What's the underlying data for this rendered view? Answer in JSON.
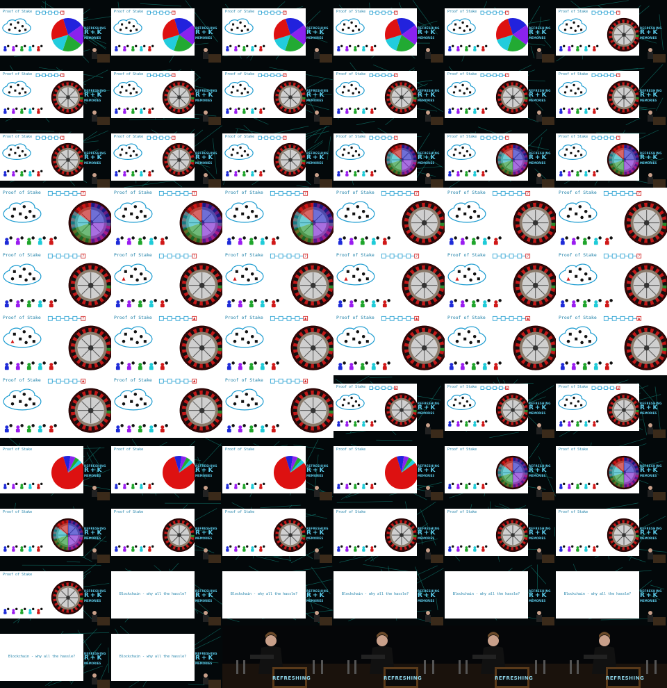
{
  "slide_title": "Proof of Stake",
  "closing_slide_text": "Blockchain - why all the hassle?",
  "branding": {
    "line1": "REFRESHING",
    "line2": "R+K",
    "line3": "MEMORIES"
  },
  "stage_banner": "REFRESHING",
  "colors": {
    "title": "#1b7fa7",
    "cloud": "#1a9bd0",
    "chain": "#1a9bd0",
    "block_mark": "#d01818",
    "people": [
      "#1e2bd8",
      "#9a1cf0",
      "#1fa52b",
      "#1fcbd8",
      "#d01818"
    ],
    "pie": [
      "#2222dd",
      "#8a22ee",
      "#22aa33",
      "#22ccdd",
      "#dd1111"
    ],
    "roulette_red": "#c41818",
    "roulette_black": "#111111",
    "roulette_green": "#2a8a2a"
  },
  "frames": [
    {
      "layout": "small",
      "main": "pie-even",
      "mark": "?"
    },
    {
      "layout": "small",
      "main": "pie-even",
      "mark": "?"
    },
    {
      "layout": "small",
      "main": "pie-even",
      "mark": "?"
    },
    {
      "layout": "small",
      "main": "pie-even",
      "mark": "?"
    },
    {
      "layout": "small",
      "main": "pie-even",
      "mark": "?"
    },
    {
      "layout": "small",
      "main": "roulette",
      "mark": "?"
    },
    {
      "layout": "small",
      "main": "roulette",
      "mark": "?"
    },
    {
      "layout": "small",
      "main": "roulette",
      "mark": "?"
    },
    {
      "layout": "small",
      "main": "roulette",
      "mark": "?"
    },
    {
      "layout": "small",
      "main": "roulette",
      "mark": "?"
    },
    {
      "layout": "small",
      "main": "roulette",
      "mark": "?"
    },
    {
      "layout": "small",
      "main": "roulette",
      "mark": "?"
    },
    {
      "layout": "small",
      "main": "roulette",
      "mark": "?"
    },
    {
      "layout": "small",
      "main": "roulette",
      "mark": "?"
    },
    {
      "layout": "small",
      "main": "roulette",
      "mark": "?"
    },
    {
      "layout": "small",
      "main": "roulette-colored",
      "mark": "?"
    },
    {
      "layout": "small",
      "main": "roulette-colored",
      "mark": "?"
    },
    {
      "layout": "small",
      "main": "roulette-colored",
      "mark": "?"
    },
    {
      "layout": "full",
      "main": "roulette-colored",
      "mark": "?"
    },
    {
      "layout": "full",
      "main": "roulette-colored",
      "mark": "?"
    },
    {
      "layout": "full",
      "main": "roulette-colored",
      "mark": "?"
    },
    {
      "layout": "full",
      "main": "roulette",
      "mark": "?"
    },
    {
      "layout": "full",
      "main": "roulette",
      "mark": "?"
    },
    {
      "layout": "full",
      "main": "roulette",
      "mark": "?"
    },
    {
      "layout": "full",
      "main": "roulette",
      "mark": "?"
    },
    {
      "layout": "full",
      "main": "roulette",
      "mark": "?",
      "red": true
    },
    {
      "layout": "full",
      "main": "roulette",
      "mark": "?",
      "red": true
    },
    {
      "layout": "full",
      "main": "roulette",
      "mark": "?",
      "red": true
    },
    {
      "layout": "full",
      "main": "roulette",
      "mark": "?",
      "red": true
    },
    {
      "layout": "full",
      "main": "roulette",
      "mark": "?",
      "red": true
    },
    {
      "layout": "full",
      "main": "roulette",
      "mark": "?",
      "red": true
    },
    {
      "layout": "full",
      "main": "roulette",
      "mark": "tri"
    },
    {
      "layout": "full",
      "main": "roulette",
      "mark": "tri"
    },
    {
      "layout": "full",
      "main": "roulette",
      "mark": "tri"
    },
    {
      "layout": "full",
      "main": "roulette",
      "mark": "tri"
    },
    {
      "layout": "full",
      "main": "roulette",
      "mark": "tri"
    },
    {
      "layout": "full",
      "main": "roulette",
      "mark": "tri"
    },
    {
      "layout": "full",
      "main": "roulette",
      "mark": "tri"
    },
    {
      "layout": "full",
      "main": "roulette",
      "mark": "tri"
    },
    {
      "layout": "small",
      "main": "roulette",
      "mark": "tri"
    },
    {
      "layout": "small",
      "main": "roulette",
      "mark": "tri"
    },
    {
      "layout": "small",
      "main": "roulette",
      "mark": "tri"
    },
    {
      "layout": "small",
      "main": "pie-red",
      "nocloud": true
    },
    {
      "layout": "small",
      "main": "pie-red",
      "nocloud": true
    },
    {
      "layout": "small",
      "main": "pie-red",
      "nocloud": true
    },
    {
      "layout": "small",
      "main": "pie-red",
      "nocloud": true
    },
    {
      "layout": "small",
      "main": "roulette-colored",
      "nocloud": true
    },
    {
      "layout": "small",
      "main": "roulette-colored",
      "nocloud": true
    },
    {
      "layout": "small",
      "main": "roulette-colored",
      "nocloud": true
    },
    {
      "layout": "small",
      "main": "roulette",
      "nocloud": true
    },
    {
      "layout": "small",
      "main": "roulette",
      "nocloud": true
    },
    {
      "layout": "small",
      "main": "roulette",
      "nocloud": true
    },
    {
      "layout": "small",
      "main": "roulette",
      "nocloud": true
    },
    {
      "layout": "small",
      "main": "roulette",
      "nocloud": true
    },
    {
      "layout": "small",
      "main": "roulette",
      "nocloud": true
    },
    {
      "layout": "closing"
    },
    {
      "layout": "closing"
    },
    {
      "layout": "closing"
    },
    {
      "layout": "closing"
    },
    {
      "layout": "closing"
    },
    {
      "layout": "closing"
    },
    {
      "layout": "closing"
    },
    {
      "layout": "stage"
    },
    {
      "layout": "stage"
    },
    {
      "layout": "stage"
    },
    {
      "layout": "stage"
    }
  ]
}
